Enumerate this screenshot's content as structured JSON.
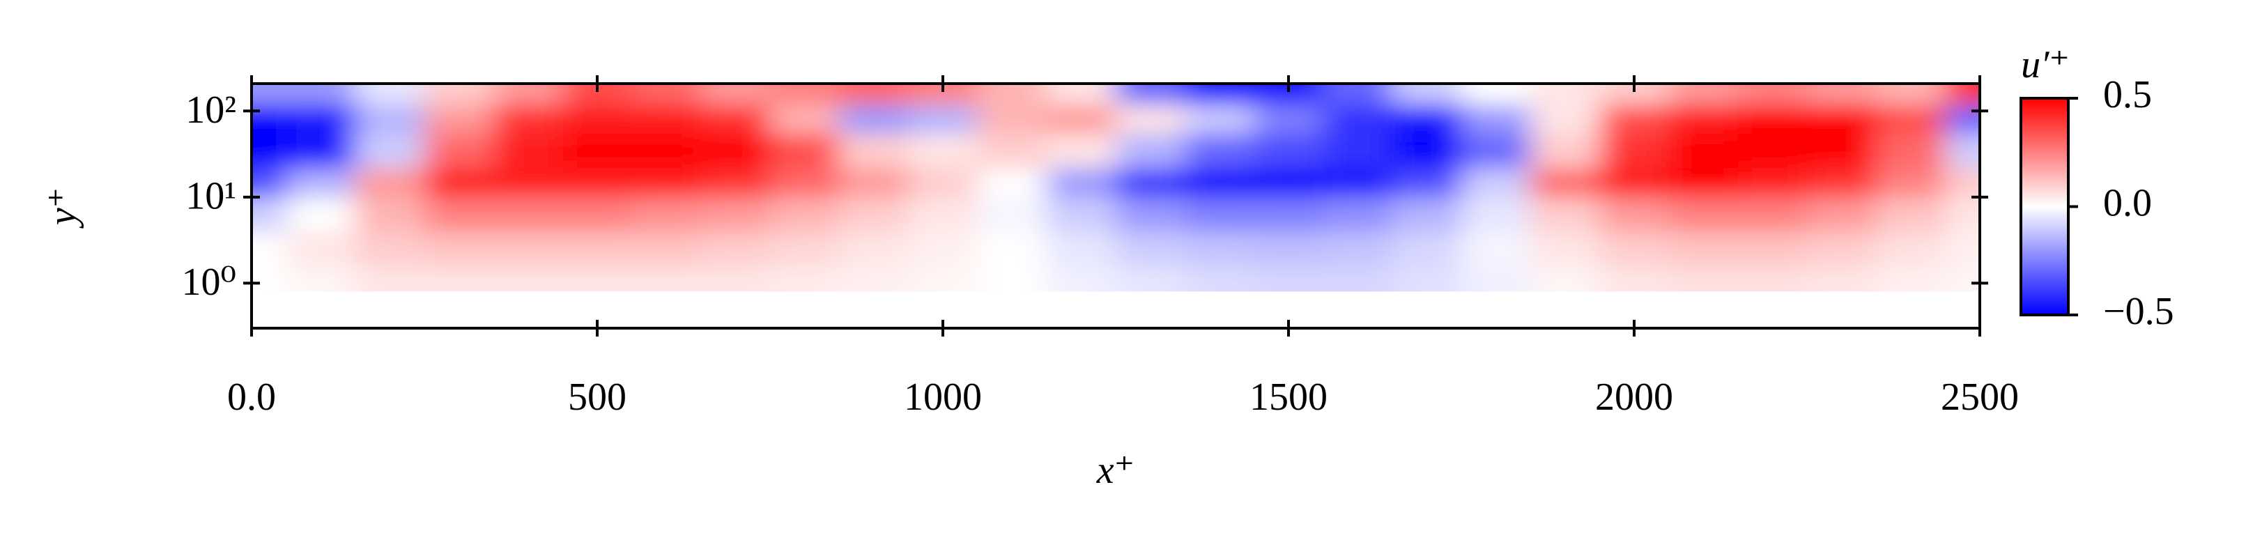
{
  "chart_data": {
    "type": "heatmap",
    "xlabel": "x⁺",
    "ylabel": "y⁺",
    "xlim": [
      0,
      2500
    ],
    "xticks": [
      {
        "value": 0,
        "label": "0.0"
      },
      500,
      1000,
      1500,
      2000,
      2500
    ],
    "ylim": [
      0.3,
      208
    ],
    "ylog": true,
    "yticks": [
      {
        "value": 1,
        "label": "10⁰"
      },
      {
        "value": 10,
        "label": "10¹"
      },
      {
        "value": 100,
        "label": "10²"
      }
    ],
    "x_bins": [
      0,
      50,
      150,
      250,
      350,
      450,
      550,
      650,
      750,
      850,
      950,
      1050,
      1150,
      1250,
      1350,
      1450,
      1550,
      1650,
      1750,
      1850,
      1950,
      2050,
      2150,
      2250,
      2350,
      2450,
      2500
    ],
    "y_bins": [
      0.8,
      1.6,
      4,
      10,
      22,
      55,
      120,
      208
    ],
    "values": [
      [
        0,
        0.02,
        0.05,
        0.05,
        0.05,
        0.05,
        0.05,
        0.05,
        0.04,
        0.03,
        0.02,
        0,
        -0.03,
        -0.05,
        -0.07,
        -0.08,
        -0.08,
        -0.06,
        -0.03,
        0.02,
        0.05,
        0.06,
        0.06,
        0.05,
        0.03,
        0.02
      ],
      [
        0,
        0.05,
        0.1,
        0.12,
        0.12,
        0.12,
        0.12,
        0.1,
        0.08,
        0.05,
        0.03,
        0,
        -0.05,
        -0.1,
        -0.12,
        -0.13,
        -0.12,
        -0.08,
        -0.02,
        0.05,
        0.1,
        0.12,
        0.12,
        0.1,
        0.06,
        0.03
      ],
      [
        -0.1,
        0,
        0.15,
        0.25,
        0.25,
        0.25,
        0.22,
        0.2,
        0.15,
        0.1,
        0.05,
        -0.02,
        -0.1,
        -0.2,
        -0.25,
        -0.25,
        -0.22,
        -0.15,
        -0.05,
        0.1,
        0.2,
        0.25,
        0.25,
        0.2,
        0.12,
        0.05
      ],
      [
        -0.35,
        -0.15,
        0.2,
        0.45,
        0.45,
        0.45,
        0.45,
        0.4,
        0.3,
        0.2,
        0.1,
        0,
        -0.2,
        -0.4,
        -0.5,
        -0.5,
        -0.45,
        -0.35,
        -0.1,
        0.3,
        0.45,
        0.5,
        0.45,
        0.4,
        0.25,
        0.1
      ],
      [
        -0.5,
        -0.45,
        -0.1,
        0.3,
        0.45,
        0.5,
        0.55,
        0.55,
        0.35,
        0.1,
        0.05,
        0.1,
        0.05,
        -0.15,
        -0.3,
        -0.35,
        -0.4,
        -0.5,
        -0.3,
        0.1,
        0.4,
        0.5,
        0.55,
        0.55,
        0.3,
        -0.1
      ],
      [
        -0.5,
        -0.45,
        -0.15,
        0.2,
        0.4,
        0.45,
        0.45,
        0.4,
        0.15,
        -0.2,
        -0.15,
        0.15,
        0.2,
        0.05,
        -0.1,
        -0.25,
        -0.4,
        -0.45,
        -0.2,
        0.05,
        0.35,
        0.45,
        0.5,
        0.5,
        0.35,
        -0.3
      ],
      [
        -0.2,
        -0.2,
        -0.05,
        0.1,
        0.2,
        0.35,
        0.3,
        0.2,
        0.25,
        0.3,
        0.25,
        0.15,
        0.05,
        -0.3,
        -0.45,
        -0.45,
        -0.3,
        -0.1,
        0,
        0.05,
        0.1,
        0.2,
        0.25,
        0.2,
        0.15,
        0.4
      ]
    ],
    "colormap": [
      "#0000ff",
      "#ffffff",
      "#ff0000"
    ],
    "clabel": "u′⁺",
    "clim": [
      -0.5,
      0.5
    ],
    "cticks": [
      {
        "value": -0.5,
        "label": "−0.5"
      },
      {
        "value": 0,
        "label": "0.0"
      },
      0.5
    ]
  }
}
